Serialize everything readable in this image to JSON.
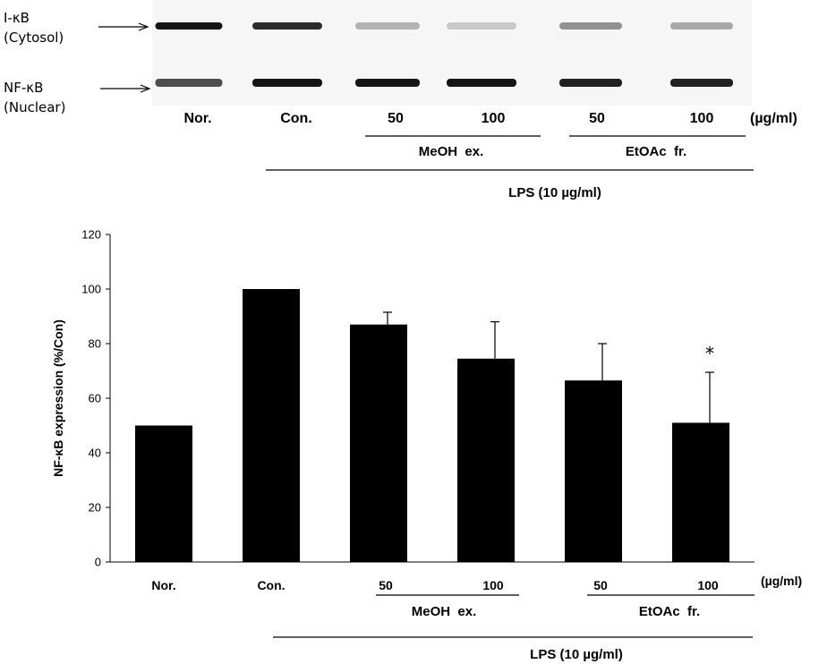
{
  "blot": {
    "rows": [
      {
        "label_line1": "I-κB",
        "label_line2": "(Cytosol)"
      },
      {
        "label_line1": "NF-κB",
        "label_line2": "(Nuclear)"
      }
    ],
    "lanes": [
      "Nor.",
      "Con.",
      "50",
      "100",
      "50",
      "100"
    ],
    "unit": "(µg/ml)",
    "group1": "MeOH  ex.",
    "group2": "EtOAc  fr.",
    "treatment": "LPS (10 µg/ml)",
    "band_intensity": {
      "ikb": [
        0.95,
        0.85,
        0.25,
        0.15,
        0.4,
        0.3
      ],
      "nfkb": [
        0.7,
        0.95,
        0.95,
        0.95,
        0.9,
        0.9
      ]
    }
  },
  "chart_data": {
    "type": "bar",
    "categories": [
      "Nor.",
      "Con.",
      "50",
      "100",
      "50",
      "100"
    ],
    "values": [
      50,
      100,
      87,
      74.5,
      66.5,
      51
    ],
    "errors": [
      0,
      0,
      4.5,
      13.5,
      13.5,
      18.5
    ],
    "significance": [
      "",
      "",
      "",
      "",
      "",
      "*"
    ],
    "ylabel": "NF-κB expression (%/Con)",
    "ylim": [
      0,
      120
    ],
    "yticks": [
      "0",
      "20",
      "40",
      "60",
      "80",
      "100",
      "120"
    ],
    "unit": "(µg/ml)",
    "group1": "MeOH  ex.",
    "group2": "EtOAc  fr.",
    "treatment": "LPS (10 µg/ml)",
    "bar_color": "#000000"
  }
}
